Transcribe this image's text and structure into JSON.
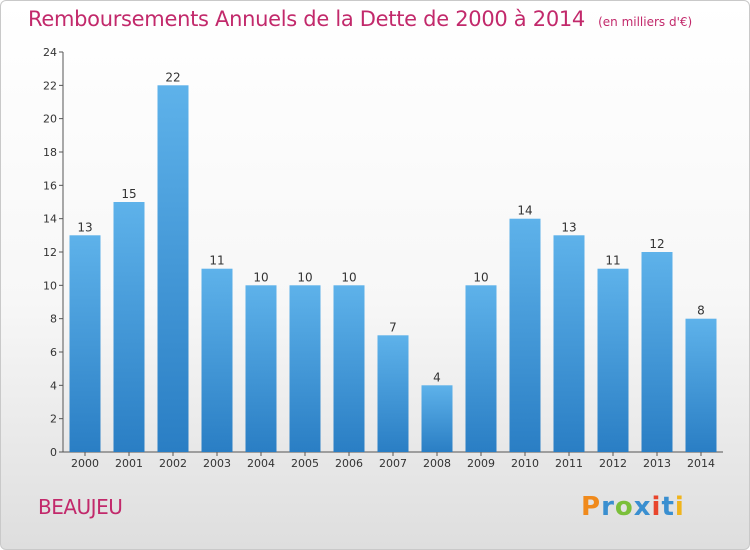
{
  "header": {
    "title": "Remboursements Annuels de la Dette de 2000 à 2014",
    "unit": "(en milliers d'€)"
  },
  "footer": {
    "city": "BEAUJEU",
    "logo_text": "Proxiti"
  },
  "colors": {
    "title": "#c2296b",
    "bar_light": "#5eb2ea",
    "bar_dark": "#2a7ec4"
  },
  "chart_data": {
    "type": "bar",
    "title": "Remboursements Annuels de la Dette de 2000 à 2014",
    "xlabel": "",
    "ylabel": "(en milliers d'€)",
    "categories": [
      "2000",
      "2001",
      "2002",
      "2003",
      "2004",
      "2005",
      "2006",
      "2007",
      "2008",
      "2009",
      "2010",
      "2011",
      "2012",
      "2013",
      "2014"
    ],
    "values": [
      13,
      15,
      22,
      11,
      10,
      10,
      10,
      7,
      4,
      10,
      14,
      13,
      11,
      12,
      8
    ],
    "ylim": [
      0,
      24
    ],
    "yticks": [
      0,
      2,
      4,
      6,
      8,
      10,
      12,
      14,
      16,
      18,
      20,
      22,
      24
    ],
    "grid": false,
    "legend": "none"
  }
}
